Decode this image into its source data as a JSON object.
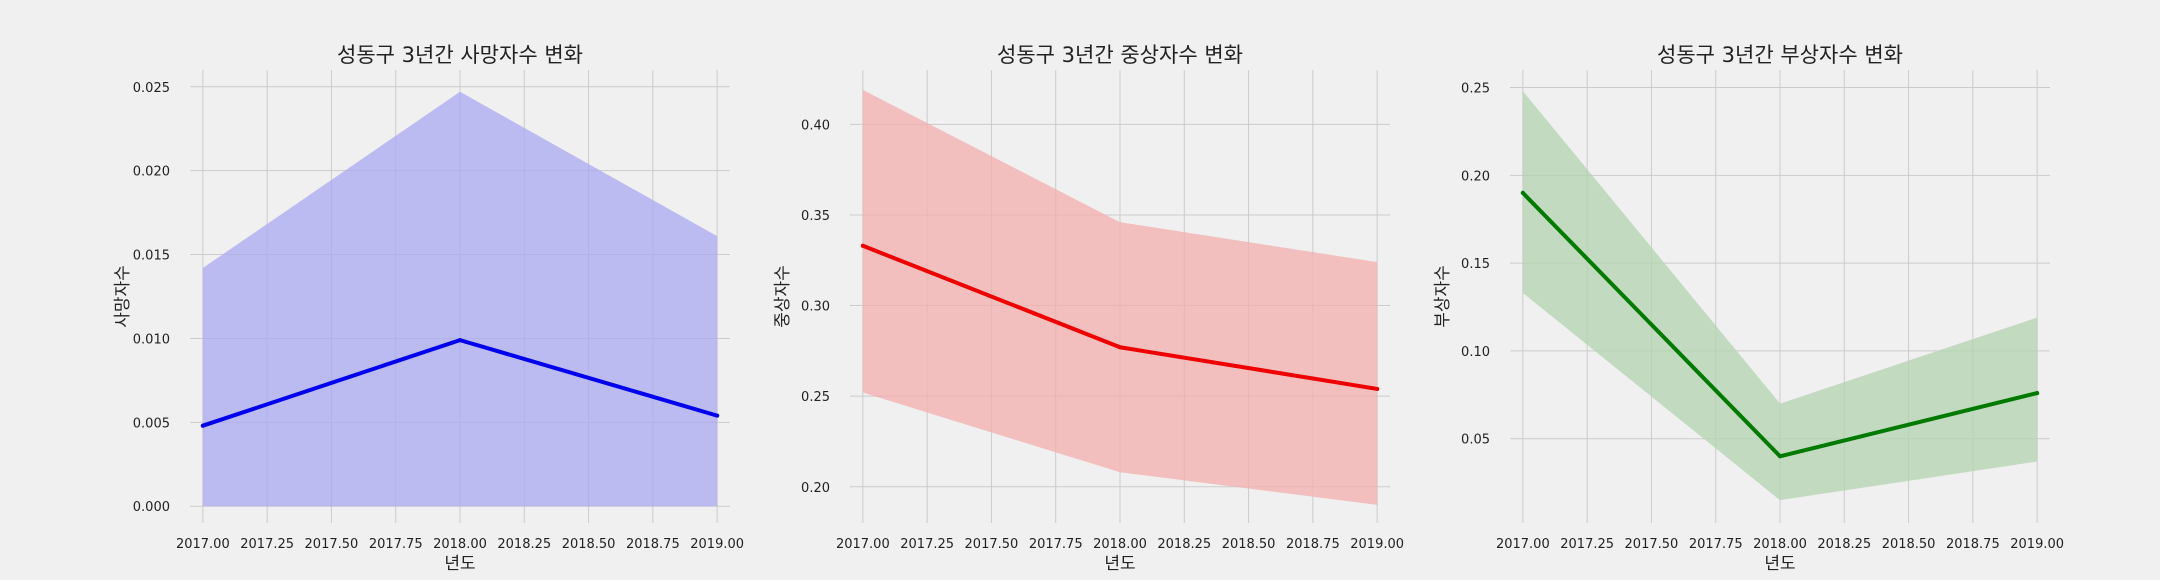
{
  "chart_data": [
    {
      "type": "line",
      "title": "성동구 3년간 사망자수 변화",
      "xlabel": "년도",
      "ylabel": "사망자수",
      "x": [
        2017,
        2018,
        2019
      ],
      "xlim": [
        2016.95,
        2019.05
      ],
      "ylim": [
        -0.001,
        0.026
      ],
      "xticks": [
        2017.0,
        2017.25,
        2017.5,
        2017.75,
        2018.0,
        2018.25,
        2018.5,
        2018.75,
        2019.0
      ],
      "xtick_labels": [
        "2017.00",
        "2017.25",
        "2017.50",
        "2017.75",
        "2018.00",
        "2018.25",
        "2018.50",
        "2018.75",
        "2019.00"
      ],
      "yticks": [
        0.0,
        0.005,
        0.01,
        0.015,
        0.02,
        0.025
      ],
      "ytick_labels": [
        "0.000",
        "0.005",
        "0.010",
        "0.015",
        "0.020",
        "0.025"
      ],
      "grid": true,
      "series": [
        {
          "values": [
            0.0048,
            0.0099,
            0.0054
          ],
          "ci_lower": [
            0.0,
            0.0,
            0.0
          ],
          "ci_upper": [
            0.0142,
            0.0247,
            0.0161
          ],
          "color": "#0000ee",
          "band_color": "#aaaaf2"
        }
      ]
    },
    {
      "type": "line",
      "title": "성동구 3년간 중상자수 변화",
      "xlabel": "년도",
      "ylabel": "중상자수",
      "x": [
        2017,
        2018,
        2019
      ],
      "xlim": [
        2016.95,
        2019.05
      ],
      "ylim": [
        0.18,
        0.43
      ],
      "xticks": [
        2017.0,
        2017.25,
        2017.5,
        2017.75,
        2018.0,
        2018.25,
        2018.5,
        2018.75,
        2019.0
      ],
      "xtick_labels": [
        "2017.00",
        "2017.25",
        "2017.50",
        "2017.75",
        "2018.00",
        "2018.25",
        "2018.50",
        "2018.75",
        "2019.00"
      ],
      "yticks": [
        0.2,
        0.25,
        0.3,
        0.35,
        0.4
      ],
      "ytick_labels": [
        "0.20",
        "0.25",
        "0.30",
        "0.35",
        "0.40"
      ],
      "grid": true,
      "series": [
        {
          "values": [
            0.333,
            0.277,
            0.254
          ],
          "ci_lower": [
            0.252,
            0.208,
            0.19
          ],
          "ci_upper": [
            0.419,
            0.346,
            0.324
          ],
          "color": "#ee0000",
          "band_color": "#f3aeae"
        }
      ]
    },
    {
      "type": "line",
      "title": "성동구 3년간 부상자수 변화",
      "xlabel": "년도",
      "ylabel": "부상자수",
      "x": [
        2017,
        2018,
        2019
      ],
      "xlim": [
        2016.95,
        2019.05
      ],
      "ylim": [
        0.002,
        0.26
      ],
      "xticks": [
        2017.0,
        2017.25,
        2017.5,
        2017.75,
        2018.0,
        2018.25,
        2018.5,
        2018.75,
        2019.0
      ],
      "xtick_labels": [
        "2017.00",
        "2017.25",
        "2017.50",
        "2017.75",
        "2018.00",
        "2018.25",
        "2018.50",
        "2018.75",
        "2019.00"
      ],
      "yticks": [
        0.05,
        0.1,
        0.15,
        0.2,
        0.25
      ],
      "ytick_labels": [
        "0.05",
        "0.10",
        "0.15",
        "0.20",
        "0.25"
      ],
      "grid": true,
      "series": [
        {
          "values": [
            0.19,
            0.04,
            0.076
          ],
          "ci_lower": [
            0.133,
            0.015,
            0.037
          ],
          "ci_upper": [
            0.248,
            0.07,
            0.119
          ],
          "color": "#007a00",
          "band_color": "#b3d4b0"
        }
      ]
    }
  ]
}
